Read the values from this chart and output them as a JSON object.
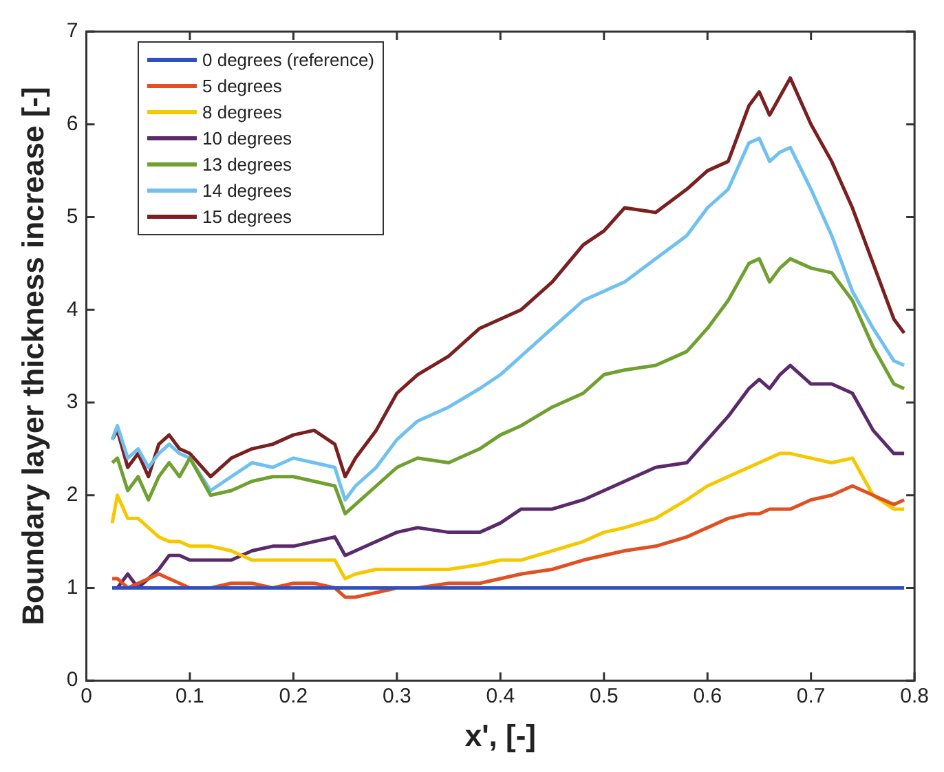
{
  "chart_data": {
    "type": "line",
    "xlabel": "x', [-]",
    "ylabel": "Boundary layer thickness increase [-]",
    "x": [
      0.025,
      0.03,
      0.04,
      0.05,
      0.06,
      0.07,
      0.08,
      0.09,
      0.1,
      0.12,
      0.14,
      0.16,
      0.18,
      0.2,
      0.22,
      0.24,
      0.25,
      0.26,
      0.28,
      0.3,
      0.32,
      0.35,
      0.38,
      0.4,
      0.42,
      0.45,
      0.48,
      0.5,
      0.52,
      0.55,
      0.58,
      0.6,
      0.62,
      0.64,
      0.65,
      0.66,
      0.67,
      0.68,
      0.7,
      0.72,
      0.74,
      0.76,
      0.78,
      0.79
    ],
    "xlim": [
      0,
      0.8
    ],
    "xticks": [
      0,
      0.1,
      0.2,
      0.3,
      0.4,
      0.5,
      0.6,
      0.7,
      0.8
    ],
    "ylim": [
      0,
      7
    ],
    "yticks": [
      0,
      1,
      2,
      3,
      4,
      5,
      6,
      7
    ],
    "grid": false,
    "legend": "top left",
    "marker": "none",
    "line_style": "solid",
    "series": [
      {
        "name": "0 degrees (reference)",
        "color": "#3050c0",
        "x": [
          0.025,
          0.79
        ],
        "values": [
          1,
          1
        ]
      },
      {
        "name": "5 degrees",
        "color": "#e05020",
        "values": [
          1.1,
          1.1,
          1.0,
          1.05,
          1.1,
          1.15,
          1.1,
          1.05,
          1.0,
          1.0,
          1.05,
          1.05,
          1.0,
          1.05,
          1.05,
          1.0,
          0.9,
          0.9,
          0.95,
          1.0,
          1.0,
          1.05,
          1.05,
          1.1,
          1.15,
          1.2,
          1.3,
          1.35,
          1.4,
          1.45,
          1.55,
          1.65,
          1.75,
          1.8,
          1.8,
          1.85,
          1.85,
          1.85,
          1.95,
          2.0,
          2.1,
          2.0,
          1.9,
          1.95
        ]
      },
      {
        "name": "8 degrees",
        "color": "#f5c800",
        "values": [
          1.7,
          2.0,
          1.75,
          1.75,
          1.65,
          1.55,
          1.5,
          1.5,
          1.45,
          1.45,
          1.4,
          1.3,
          1.3,
          1.3,
          1.3,
          1.3,
          1.1,
          1.15,
          1.2,
          1.2,
          1.2,
          1.2,
          1.25,
          1.3,
          1.3,
          1.4,
          1.5,
          1.6,
          1.65,
          1.75,
          1.95,
          2.1,
          2.2,
          2.3,
          2.35,
          2.4,
          2.45,
          2.45,
          2.4,
          2.35,
          2.4,
          2.0,
          1.85,
          1.85
        ]
      },
      {
        "name": "10 degrees",
        "color": "#5a2a6a",
        "values": [
          1.0,
          1.0,
          1.15,
          1.0,
          1.1,
          1.2,
          1.35,
          1.35,
          1.3,
          1.3,
          1.3,
          1.4,
          1.45,
          1.45,
          1.5,
          1.55,
          1.35,
          1.4,
          1.5,
          1.6,
          1.65,
          1.6,
          1.6,
          1.7,
          1.85,
          1.85,
          1.95,
          2.05,
          2.15,
          2.3,
          2.35,
          2.6,
          2.85,
          3.15,
          3.25,
          3.15,
          3.3,
          3.4,
          3.2,
          3.2,
          3.1,
          2.7,
          2.45,
          2.45
        ]
      },
      {
        "name": "13 degrees",
        "color": "#70a030",
        "values": [
          2.35,
          2.4,
          2.05,
          2.2,
          1.95,
          2.2,
          2.35,
          2.2,
          2.4,
          2.0,
          2.05,
          2.15,
          2.2,
          2.2,
          2.15,
          2.1,
          1.8,
          1.9,
          2.1,
          2.3,
          2.4,
          2.35,
          2.5,
          2.65,
          2.75,
          2.95,
          3.1,
          3.3,
          3.35,
          3.4,
          3.55,
          3.8,
          4.1,
          4.5,
          4.55,
          4.3,
          4.45,
          4.55,
          4.45,
          4.4,
          4.1,
          3.6,
          3.2,
          3.15
        ]
      },
      {
        "name": "14 degrees",
        "color": "#70c0f0",
        "values": [
          2.6,
          2.75,
          2.4,
          2.5,
          2.3,
          2.45,
          2.55,
          2.45,
          2.4,
          2.05,
          2.2,
          2.35,
          2.3,
          2.4,
          2.35,
          2.3,
          1.95,
          2.1,
          2.3,
          2.6,
          2.8,
          2.95,
          3.15,
          3.3,
          3.5,
          3.8,
          4.1,
          4.2,
          4.3,
          4.55,
          4.8,
          5.1,
          5.3,
          5.8,
          5.85,
          5.6,
          5.7,
          5.75,
          5.3,
          4.8,
          4.2,
          3.8,
          3.45,
          3.4
        ]
      },
      {
        "name": "15 degrees",
        "color": "#7a2020",
        "values": [
          2.6,
          2.7,
          2.3,
          2.45,
          2.2,
          2.55,
          2.65,
          2.5,
          2.45,
          2.2,
          2.4,
          2.5,
          2.55,
          2.65,
          2.7,
          2.55,
          2.2,
          2.4,
          2.7,
          3.1,
          3.3,
          3.5,
          3.8,
          3.9,
          4.0,
          4.3,
          4.7,
          4.85,
          5.1,
          5.05,
          5.3,
          5.5,
          5.6,
          6.2,
          6.35,
          6.1,
          6.3,
          6.5,
          6.0,
          5.6,
          5.1,
          4.5,
          3.9,
          3.75
        ]
      }
    ]
  }
}
